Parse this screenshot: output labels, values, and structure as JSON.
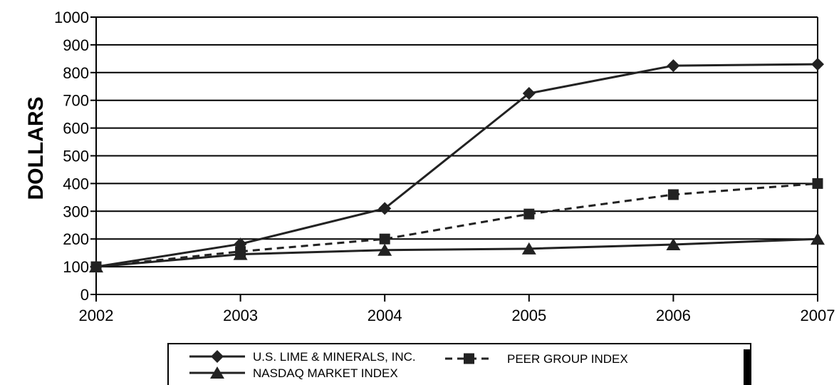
{
  "chart_data": {
    "type": "line",
    "x": [
      "2002",
      "2003",
      "2004",
      "2005",
      "2006",
      "2007"
    ],
    "ylabel": "DOLLARS",
    "ylim": [
      0,
      1000
    ],
    "yticks": [
      "0",
      "100",
      "200",
      "300",
      "400",
      "500",
      "600",
      "700",
      "800",
      "900",
      "1000"
    ],
    "grid": "horizontal",
    "legend_position": "bottom",
    "series": [
      {
        "name": "U.S. LIME & MINERALS, INC.",
        "values": [
          100,
          182,
          310,
          725,
          825,
          830
        ],
        "marker": "diamond",
        "style": "solid",
        "color": "#222222"
      },
      {
        "name": "PEER GROUP INDEX",
        "values": [
          100,
          155,
          200,
          290,
          360,
          400
        ],
        "marker": "square",
        "style": "dashed",
        "color": "#222222"
      },
      {
        "name": "NASDAQ MARKET INDEX",
        "values": [
          100,
          145,
          160,
          165,
          180,
          200
        ],
        "marker": "triangle",
        "style": "solid",
        "color": "#222222"
      }
    ]
  }
}
